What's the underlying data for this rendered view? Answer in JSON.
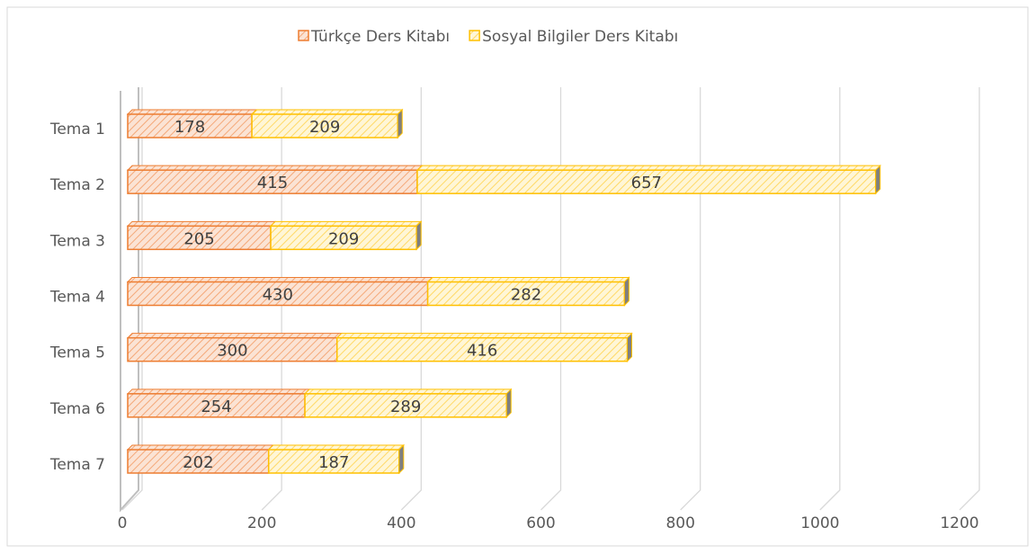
{
  "chart_data": {
    "type": "bar",
    "orientation": "horizontal",
    "stacked": true,
    "categories": [
      "Tema 1",
      "Tema 2",
      "Tema 3",
      "Tema 4",
      "Tema 5",
      "Tema 6",
      "Tema 7"
    ],
    "series": [
      {
        "name": "Türkçe Ders Kitabı",
        "color": "#ed7d31",
        "values": [
          178,
          415,
          205,
          430,
          300,
          254,
          202
        ]
      },
      {
        "name": "Sosyal Bilgiler Ders Kitabı",
        "color": "#ffc000",
        "values": [
          209,
          657,
          209,
          282,
          416,
          289,
          187
        ]
      }
    ],
    "xlim": [
      0,
      1200
    ],
    "xticks": [
      0,
      200,
      400,
      600,
      800,
      1000,
      1200
    ],
    "grid": true,
    "legend": "top"
  }
}
